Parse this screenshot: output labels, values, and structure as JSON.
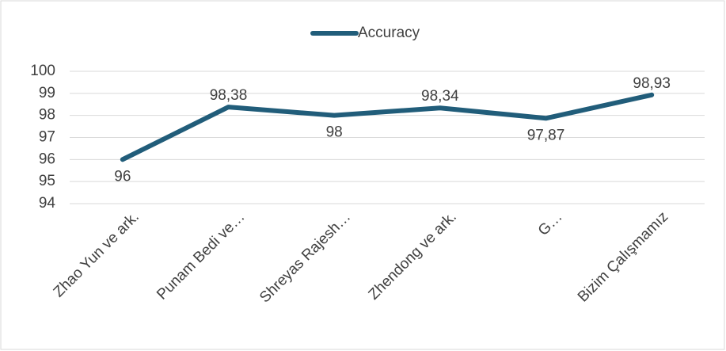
{
  "chart_data": {
    "type": "line",
    "categories": [
      "Zhao Yun ve ark.",
      "Punam Bedi ve…",
      "Shreyas Rajesh…",
      "Zhendong ve ark.",
      "G…",
      "Bizim Çalışmamız"
    ],
    "series": [
      {
        "name": "Accuracy",
        "color": "#215d7a",
        "values": [
          96,
          98.38,
          98,
          98.34,
          97.87,
          98.93
        ],
        "value_labels": [
          "96",
          "98,38",
          "98",
          "98,34",
          "97,87",
          "98,93"
        ]
      }
    ],
    "ylim": [
      94,
      100
    ],
    "yticks": [
      94,
      95,
      96,
      97,
      98,
      99,
      100
    ],
    "grid": true,
    "legend": "top"
  }
}
